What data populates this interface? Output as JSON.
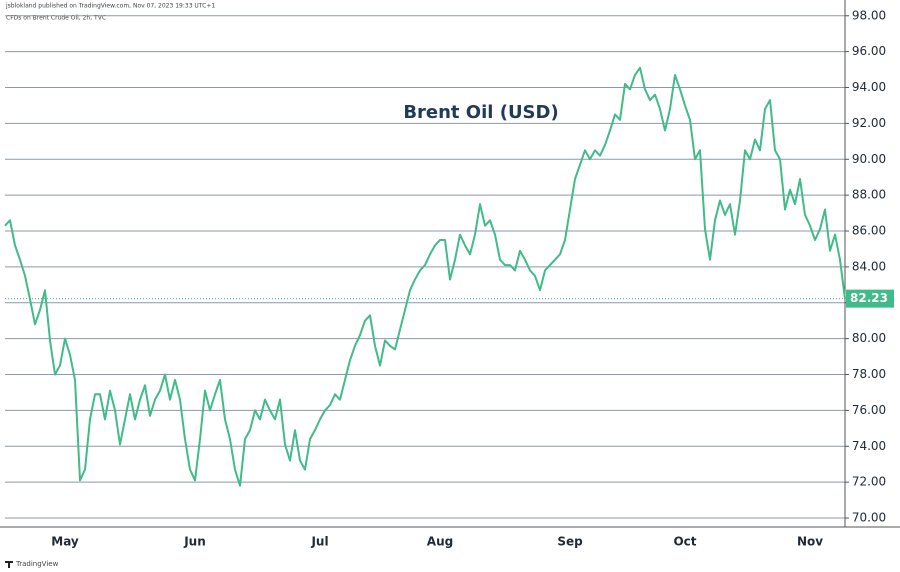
{
  "chart_data": {
    "type": "line",
    "attribution": "jsblokland published on TradingView.com, Nov 07, 2023 19:33 UTC+1",
    "subtitle": "CFDs on Brent Crude Oil, 2h, TVC",
    "title": "Brent Oil (USD)",
    "footer": "TradingView",
    "color": "#40bb89",
    "grid": true,
    "ylim": [
      69.5,
      98.6
    ],
    "yticks": [
      {
        "value": 70,
        "label": "70.00"
      },
      {
        "value": 72,
        "label": "72.00"
      },
      {
        "value": 74,
        "label": "74.00"
      },
      {
        "value": 76,
        "label": "76.00"
      },
      {
        "value": 78,
        "label": "78.00"
      },
      {
        "value": 80,
        "label": "80.00"
      },
      {
        "value": 82,
        "label": "82.00"
      },
      {
        "value": 84,
        "label": "84.00"
      },
      {
        "value": 86,
        "label": "86.00"
      },
      {
        "value": 88,
        "label": "88.00"
      },
      {
        "value": 90,
        "label": "90.00"
      },
      {
        "value": 92,
        "label": "92.00"
      },
      {
        "value": 94,
        "label": "94.00"
      },
      {
        "value": 96,
        "label": "96.00"
      },
      {
        "value": 98,
        "label": "98.00"
      }
    ],
    "categories": [
      null,
      null,
      null,
      null,
      null,
      null,
      null,
      null,
      null,
      null,
      null,
      null,
      "May",
      null,
      null,
      null,
      null,
      null,
      null,
      null,
      null,
      null,
      null,
      null,
      null,
      null,
      null,
      null,
      null,
      null,
      null,
      null,
      null,
      null,
      null,
      null,
      null,
      null,
      "Jun",
      null,
      null,
      null,
      null,
      null,
      null,
      null,
      null,
      null,
      null,
      null,
      null,
      null,
      null,
      null,
      null,
      null,
      null,
      null,
      null,
      null,
      null,
      null,
      null,
      "Jul",
      null,
      null,
      null,
      null,
      null,
      null,
      null,
      null,
      null,
      null,
      null,
      null,
      null,
      null,
      null,
      null,
      null,
      null,
      null,
      null,
      null,
      null,
      null,
      "Aug",
      null,
      null,
      null,
      null,
      null,
      null,
      null,
      null,
      null,
      null,
      null,
      null,
      null,
      null,
      null,
      null,
      null,
      null,
      null,
      null,
      null,
      null,
      null,
      null,
      null,
      "Sep",
      null,
      null,
      null,
      null,
      null,
      null,
      null,
      null,
      null,
      null,
      null,
      null,
      null,
      null,
      null,
      null,
      null,
      null,
      null,
      null,
      null,
      null,
      "Oct",
      null,
      null,
      null,
      null,
      null,
      null,
      null,
      null,
      null,
      null,
      null,
      null,
      null,
      null,
      null,
      null,
      null,
      null,
      null,
      null,
      null,
      null,
      null,
      null,
      "Nov",
      null,
      null,
      null,
      null,
      null,
      null,
      null
    ],
    "values": [
      86.3,
      86.6,
      85.2,
      84.4,
      83.5,
      82.2,
      80.8,
      81.6,
      82.7,
      79.9,
      78.0,
      78.5,
      80.0,
      79.1,
      77.7,
      72.1,
      72.7,
      75.5,
      76.9,
      76.9,
      75.5,
      77.1,
      76.0,
      74.1,
      75.5,
      76.9,
      75.5,
      76.6,
      77.4,
      75.7,
      76.6,
      77.1,
      78.0,
      76.6,
      77.7,
      76.6,
      74.4,
      72.7,
      72.1,
      74.4,
      77.1,
      76.0,
      76.9,
      77.7,
      75.5,
      74.4,
      72.7,
      71.8,
      74.4,
      74.9,
      76.0,
      75.5,
      76.6,
      76.0,
      75.5,
      76.6,
      74.1,
      73.2,
      74.9,
      73.2,
      72.7,
      74.4,
      74.9,
      75.5,
      76.0,
      76.3,
      76.9,
      76.6,
      77.7,
      78.8,
      79.6,
      80.2,
      81.0,
      81.3,
      79.6,
      78.5,
      79.9,
      79.6,
      79.4,
      80.5,
      81.6,
      82.7,
      83.3,
      83.8,
      84.1,
      84.7,
      85.2,
      85.5,
      85.5,
      83.3,
      84.4,
      85.8,
      85.2,
      84.7,
      85.8,
      87.5,
      86.3,
      86.6,
      85.8,
      84.4,
      84.1,
      84.1,
      83.8,
      84.9,
      84.4,
      83.8,
      83.5,
      82.7,
      83.8,
      84.1,
      84.4,
      84.7,
      85.5,
      87.2,
      88.9,
      89.7,
      90.5,
      90.0,
      90.5,
      90.2,
      90.8,
      91.6,
      92.5,
      92.2,
      94.2,
      93.9,
      94.7,
      95.1,
      93.9,
      93.3,
      93.6,
      92.8,
      91.6,
      92.8,
      94.7,
      93.9,
      93.0,
      92.2,
      90.0,
      90.5,
      86.1,
      84.4,
      86.6,
      87.7,
      86.9,
      87.5,
      85.8,
      87.7,
      90.5,
      90.0,
      91.1,
      90.5,
      92.8,
      93.3,
      90.5,
      90.0,
      87.2,
      88.3,
      87.5,
      88.9,
      86.9,
      86.3,
      85.5,
      86.1,
      87.2,
      84.9,
      85.8,
      84.4,
      82.23
    ]
  }
}
